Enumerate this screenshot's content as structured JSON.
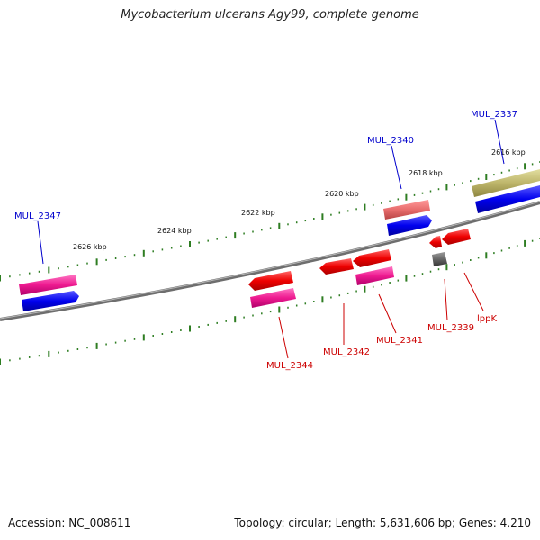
{
  "title": "Mycobacterium ulcerans Agy99, complete genome",
  "footer": {
    "accession": "Accession: NC_008611",
    "topology": "Topology: circular; Length: 5,631,606 bp; Genes: 4,210"
  },
  "scale_labels": [
    "2616 kbp",
    "2618 kbp",
    "2620 kbp",
    "2622 kbp",
    "2624 kbp",
    "2626 kbp"
  ],
  "forward_gene_labels": [
    "MUL_2337",
    "MUL_2340",
    "MUL_2347"
  ],
  "reverse_gene_labels": [
    "MUL_2339",
    "lppK",
    "MUL_2341",
    "MUL_2342",
    "MUL_2344"
  ],
  "colors": {
    "forward_label": "#0000cc",
    "reverse_label": "#cc0000",
    "tick": "#2e7d22",
    "backbone": "#7a7a7a"
  }
}
